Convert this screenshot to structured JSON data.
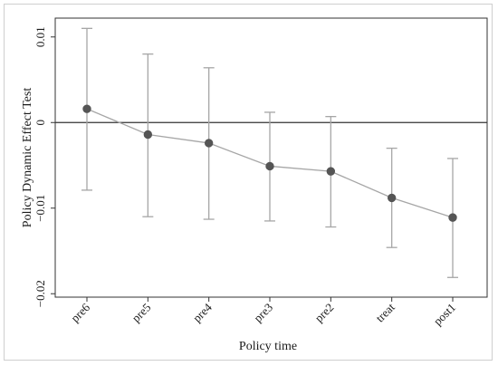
{
  "chart_data": {
    "type": "line",
    "title": "",
    "xlabel": "Policy time",
    "ylabel": "Policy Dynamic Effect Test",
    "categories": [
      "pre6",
      "pre5",
      "pre4",
      "pre3",
      "pre2",
      "treat",
      "post1"
    ],
    "series": [
      {
        "values": [
          0.0016,
          -0.0014,
          -0.0024,
          -0.0051,
          -0.0057,
          -0.0088,
          -0.0111
        ],
        "ci_lower": [
          -0.0079,
          -0.011,
          -0.0113,
          -0.0115,
          -0.0122,
          -0.0146,
          -0.0181
        ],
        "ci_upper": [
          0.011,
          0.008,
          0.0064,
          0.0012,
          0.0007,
          -0.003,
          -0.0042
        ]
      }
    ],
    "y_ticks": [
      0.01,
      0,
      -0.01,
      -0.02
    ],
    "y_tick_labels": [
      "0.01",
      "0",
      "−0.01",
      "−0.02"
    ],
    "ylim": [
      -0.0204,
      0.0122
    ],
    "reference_line_y": 0,
    "grid": false,
    "colors": {
      "series": "#a6a6a6",
      "marker": "#555555",
      "reference_line": "#333333",
      "axis": "#333333"
    }
  }
}
